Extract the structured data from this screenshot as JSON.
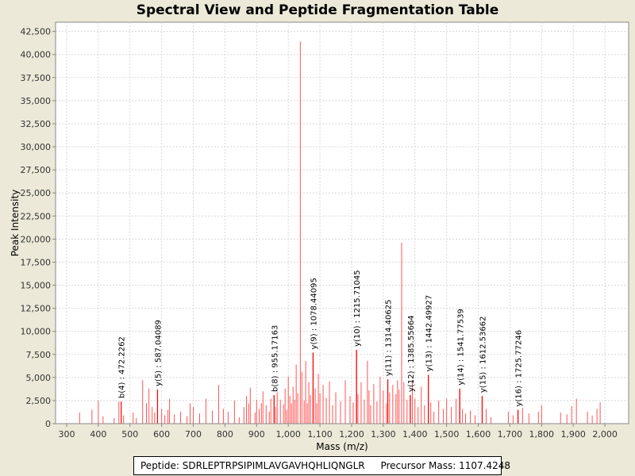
{
  "chart_data": {
    "type": "bar",
    "title": "Spectral View and Peptide Fragmentation Table",
    "xlabel": "Mass (m/z)",
    "ylabel": "Peak Intensity",
    "xlim": [
      265,
      2075
    ],
    "ylim": [
      0,
      43500
    ],
    "x_ticks": [
      300,
      400,
      500,
      600,
      700,
      800,
      900,
      1000,
      1100,
      1200,
      1300,
      1400,
      1500,
      1600,
      1700,
      1800,
      1900,
      2000
    ],
    "y_ticks": [
      0,
      2500,
      5000,
      7500,
      10000,
      12500,
      15000,
      17500,
      20000,
      22500,
      25000,
      27500,
      30000,
      32500,
      35000,
      37500,
      40000,
      42500
    ],
    "grid": true,
    "colors": {
      "peak": "#ff5555",
      "annotated_peak": "#ff0000",
      "grid": "#d8d8d8"
    },
    "peaks": [
      [
        341,
        1200
      ],
      [
        380,
        1500
      ],
      [
        400,
        2500
      ],
      [
        415,
        800
      ],
      [
        450,
        600
      ],
      [
        465,
        2400
      ],
      [
        480,
        900
      ],
      [
        510,
        1200
      ],
      [
        520,
        600
      ],
      [
        540,
        4700
      ],
      [
        552,
        2200
      ],
      [
        560,
        3800
      ],
      [
        570,
        1800
      ],
      [
        578,
        1200
      ],
      [
        587,
        3700
      ],
      [
        600,
        1600
      ],
      [
        610,
        900
      ],
      [
        620,
        1500
      ],
      [
        625,
        2700
      ],
      [
        640,
        1000
      ],
      [
        660,
        1300
      ],
      [
        680,
        800
      ],
      [
        690,
        2200
      ],
      [
        700,
        1800
      ],
      [
        720,
        1100
      ],
      [
        740,
        2700
      ],
      [
        760,
        1400
      ],
      [
        780,
        4200
      ],
      [
        795,
        1600
      ],
      [
        810,
        1300
      ],
      [
        830,
        2500
      ],
      [
        845,
        700
      ],
      [
        860,
        1800
      ],
      [
        868,
        3000
      ],
      [
        875,
        2200
      ],
      [
        880,
        3900
      ],
      [
        895,
        1200
      ],
      [
        900,
        2600
      ],
      [
        908,
        1600
      ],
      [
        915,
        2200
      ],
      [
        920,
        3500
      ],
      [
        930,
        2000
      ],
      [
        940,
        1300
      ],
      [
        945,
        2700
      ],
      [
        955,
        3100
      ],
      [
        960,
        1800
      ],
      [
        965,
        3400
      ],
      [
        975,
        2600
      ],
      [
        985,
        2100
      ],
      [
        990,
        3800
      ],
      [
        995,
        1500
      ],
      [
        1000,
        5100
      ],
      [
        1005,
        3000
      ],
      [
        1010,
        2200
      ],
      [
        1015,
        4000
      ],
      [
        1020,
        2600
      ],
      [
        1025,
        6400
      ],
      [
        1030,
        3300
      ],
      [
        1038,
        41400
      ],
      [
        1043,
        5600
      ],
      [
        1050,
        2500
      ],
      [
        1055,
        6800
      ],
      [
        1060,
        2200
      ],
      [
        1065,
        4500
      ],
      [
        1070,
        3100
      ],
      [
        1078,
        7700
      ],
      [
        1085,
        3800
      ],
      [
        1090,
        2200
      ],
      [
        1095,
        5400
      ],
      [
        1100,
        3300
      ],
      [
        1110,
        4200
      ],
      [
        1120,
        2800
      ],
      [
        1130,
        4600
      ],
      [
        1140,
        2000
      ],
      [
        1150,
        3400
      ],
      [
        1165,
        2400
      ],
      [
        1180,
        4700
      ],
      [
        1195,
        3000
      ],
      [
        1205,
        2300
      ],
      [
        1215,
        8000
      ],
      [
        1220,
        3200
      ],
      [
        1230,
        4500
      ],
      [
        1240,
        2600
      ],
      [
        1250,
        6800
      ],
      [
        1255,
        3600
      ],
      [
        1260,
        2000
      ],
      [
        1270,
        4300
      ],
      [
        1280,
        2400
      ],
      [
        1290,
        5100
      ],
      [
        1300,
        3600
      ],
      [
        1310,
        2200
      ],
      [
        1314,
        4800
      ],
      [
        1320,
        3400
      ],
      [
        1330,
        4200
      ],
      [
        1340,
        3200
      ],
      [
        1345,
        4700
      ],
      [
        1350,
        3700
      ],
      [
        1358,
        19600
      ],
      [
        1365,
        4500
      ],
      [
        1375,
        2600
      ],
      [
        1385,
        3100
      ],
      [
        1392,
        4700
      ],
      [
        1400,
        2700
      ],
      [
        1410,
        1800
      ],
      [
        1420,
        4000
      ],
      [
        1430,
        2000
      ],
      [
        1442,
        5300
      ],
      [
        1450,
        2300
      ],
      [
        1460,
        1300
      ],
      [
        1475,
        2500
      ],
      [
        1490,
        1600
      ],
      [
        1500,
        2700
      ],
      [
        1515,
        1800
      ],
      [
        1530,
        2700
      ],
      [
        1541,
        3800
      ],
      [
        1550,
        1600
      ],
      [
        1560,
        1100
      ],
      [
        1575,
        1400
      ],
      [
        1590,
        900
      ],
      [
        1612,
        3000
      ],
      [
        1625,
        1600
      ],
      [
        1640,
        700
      ],
      [
        1695,
        1300
      ],
      [
        1710,
        900
      ],
      [
        1725,
        1500
      ],
      [
        1740,
        1700
      ],
      [
        1760,
        1100
      ],
      [
        1790,
        1300
      ],
      [
        1800,
        2000
      ],
      [
        1860,
        1200
      ],
      [
        1880,
        1000
      ],
      [
        1895,
        1900
      ],
      [
        1910,
        2700
      ],
      [
        1945,
        1300
      ],
      [
        1960,
        900
      ],
      [
        1975,
        1600
      ],
      [
        1985,
        2300
      ]
    ],
    "annotations": [
      {
        "mz": 472.2262,
        "intensity": 2400,
        "label": "b(4) : 472.2262"
      },
      {
        "mz": 587.04089,
        "intensity": 3700,
        "label": "y(5) : 587.04089"
      },
      {
        "mz": 955.17163,
        "intensity": 3100,
        "label": "b(8) : 955.17163"
      },
      {
        "mz": 1078.44095,
        "intensity": 7700,
        "label": "y(9) : 1078.44095"
      },
      {
        "mz": 1215.71045,
        "intensity": 8000,
        "label": "y(10) : 1215.71045"
      },
      {
        "mz": 1314.40625,
        "intensity": 4800,
        "label": "y(11) : 1314.40625"
      },
      {
        "mz": 1385.55664,
        "intensity": 3100,
        "label": "y(12) : 1385.55664"
      },
      {
        "mz": 1442.49927,
        "intensity": 5300,
        "label": "y(13) : 1442.49927"
      },
      {
        "mz": 1541.77539,
        "intensity": 3800,
        "label": "y(14) : 1541.77539"
      },
      {
        "mz": 1612.53662,
        "intensity": 3000,
        "label": "y(15) : 1612.53662"
      },
      {
        "mz": 1725.77246,
        "intensity": 1500,
        "label": "y(16) : 1725.77246"
      }
    ]
  },
  "legend": {
    "peptide": "Peptide: SDRLEPTRPSIPIMLAVGAVHQHLIQNGLR",
    "precursor": "Precursor Mass: 1107.4248"
  }
}
